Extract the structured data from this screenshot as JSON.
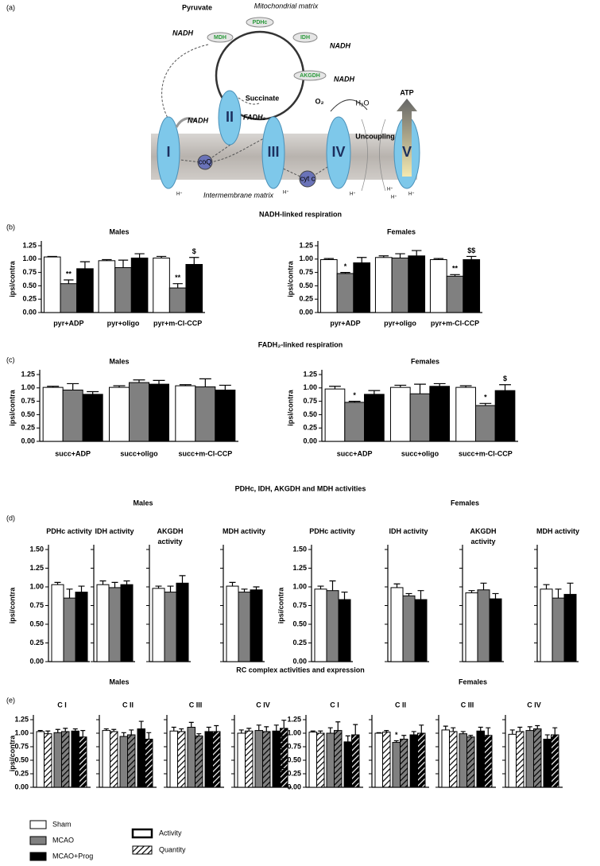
{
  "diagram": {
    "panel_label": "(a)",
    "pyruvate": "Pyruvate",
    "matrix": "Mitochondrial matrix",
    "pdhc": "PDHc",
    "mdh": "MDH",
    "idh": "IDH",
    "akgdh": "AKGDH",
    "succinate": "Succinate",
    "nadh_mdh": "NADH",
    "nadh_idh": "NADH",
    "nadh_akgdh": "NADH",
    "nadh_complex1": "NADH",
    "fadh2": "FADH₂",
    "complexes": [
      "I",
      "II",
      "III",
      "IV",
      "V"
    ],
    "coq": "coQ",
    "cytc": "cyt c",
    "o2": "O₂",
    "h2o": "H₂O",
    "atp": "ATP",
    "uncoupling": "Uncoupling",
    "intermembrane": "Intermembrane matrix",
    "protons": [
      "H⁺",
      "H⁺",
      "H⁺",
      "H⁺",
      "H⁺",
      "H⁺"
    ]
  },
  "headings": [
    "NADH-linked respiration",
    "FADH₂-linked respiration",
    "PDHc, IDH, AKGDH and MDH activities",
    "RC complex activities and expression"
  ],
  "panel_labels": [
    "(b)",
    "(c)",
    "(d)",
    "(e)"
  ],
  "chart_data": [
    {
      "type": "grouped-bar",
      "title": "Males",
      "ylabel": "ipsi/contra",
      "categories": [
        "pyr+ADP",
        "pyr+oligo",
        "pyr+m-Cl-CCP"
      ],
      "series": [
        {
          "name": "Sham",
          "color": "#ffffff",
          "values": [
            1.04,
            0.97,
            1.02
          ],
          "errors": [
            0.01,
            0.02,
            0.03
          ]
        },
        {
          "name": "MCAO",
          "color": "#808080",
          "values": [
            0.54,
            0.84,
            0.46
          ],
          "errors": [
            0.07,
            0.14,
            0.08
          ],
          "significance": [
            "**",
            null,
            "**"
          ]
        },
        {
          "name": "MCAO+Prog",
          "color": "#000000",
          "values": [
            0.82,
            1.02,
            0.9
          ],
          "errors": [
            0.13,
            0.08,
            0.13
          ],
          "significance": [
            null,
            null,
            "$"
          ]
        }
      ],
      "ylim": [
        0,
        1.25
      ],
      "yticks": [
        {
          "value": 0,
          "label": "0.00"
        },
        {
          "value": 0.25,
          "label": "0.25"
        },
        {
          "value": 0.5,
          "label": "0.50"
        },
        {
          "value": 0.75,
          "label": "0.75"
        },
        {
          "value": 1,
          "label": "1.00"
        },
        {
          "value": 1.25,
          "label": "1.25"
        }
      ]
    },
    {
      "type": "grouped-bar",
      "title": "Females",
      "ylabel": "ipsi/contra",
      "categories": [
        "pyr+ADP",
        "pyr+oligo",
        "pyr+m-Cl-CCP"
      ],
      "series": [
        {
          "name": "Sham",
          "color": "#ffffff",
          "values": [
            0.99,
            1.03,
            0.99
          ],
          "errors": [
            0.02,
            0.03,
            0.02
          ]
        },
        {
          "name": "MCAO",
          "color": "#808080",
          "values": [
            0.73,
            1.02,
            0.68
          ],
          "errors": [
            0.02,
            0.08,
            0.03
          ],
          "significance": [
            "*",
            null,
            "**"
          ]
        },
        {
          "name": "MCAO+Prog",
          "color": "#000000",
          "values": [
            0.93,
            1.06,
            0.99
          ],
          "errors": [
            0.1,
            0.1,
            0.06
          ],
          "significance": [
            null,
            null,
            "$$"
          ]
        }
      ],
      "ylim": [
        0,
        1.25
      ],
      "yticks": [
        {
          "value": 0,
          "label": "0.00"
        },
        {
          "value": 0.25,
          "label": "0.25"
        },
        {
          "value": 0.5,
          "label": "0.50"
        },
        {
          "value": 0.75,
          "label": "0.75"
        },
        {
          "value": 1,
          "label": "1.00"
        },
        {
          "value": 1.25,
          "label": "1.25"
        }
      ]
    },
    {
      "type": "grouped-bar",
      "title": "Males",
      "ylabel": "ipsi/contra",
      "categories": [
        "succ+ADP",
        "succ+oligo",
        "succ+m-Cl-CCP"
      ],
      "series": [
        {
          "name": "Sham",
          "color": "#ffffff",
          "values": [
            1.01,
            1.01,
            1.04
          ],
          "errors": [
            0.02,
            0.03,
            0.02
          ]
        },
        {
          "name": "MCAO",
          "color": "#808080",
          "values": [
            0.96,
            1.1,
            1.02
          ],
          "errors": [
            0.12,
            0.05,
            0.15
          ]
        },
        {
          "name": "MCAO+Prog",
          "color": "#000000",
          "values": [
            0.88,
            1.07,
            0.96
          ],
          "errors": [
            0.05,
            0.07,
            0.09
          ]
        }
      ],
      "ylim": [
        0,
        1.25
      ],
      "yticks": [
        {
          "value": 0,
          "label": "0.00"
        },
        {
          "value": 0.25,
          "label": "0.25"
        },
        {
          "value": 0.5,
          "label": "0.50"
        },
        {
          "value": 0.75,
          "label": "0.75"
        },
        {
          "value": 1,
          "label": "1.00"
        },
        {
          "value": 1.25,
          "label": "1.25"
        }
      ]
    },
    {
      "type": "grouped-bar",
      "title": "Females",
      "ylabel": "ipsi/contra",
      "categories": [
        "succ+ADP",
        "succ+oligo",
        "succ+m-Cl-CCP"
      ],
      "series": [
        {
          "name": "Sham",
          "color": "#ffffff",
          "values": [
            0.98,
            1.01,
            1.01
          ],
          "errors": [
            0.05,
            0.04,
            0.03
          ]
        },
        {
          "name": "MCAO",
          "color": "#808080",
          "values": [
            0.73,
            0.89,
            0.67
          ],
          "errors": [
            0.02,
            0.18,
            0.04
          ],
          "significance": [
            "*",
            null,
            "*"
          ]
        },
        {
          "name": "MCAO+Prog",
          "color": "#000000",
          "values": [
            0.88,
            1.03,
            0.95
          ],
          "errors": [
            0.07,
            0.05,
            0.11
          ],
          "significance": [
            null,
            null,
            "$"
          ]
        }
      ],
      "ylim": [
        0,
        1.25
      ],
      "yticks": [
        {
          "value": 0,
          "label": "0.00"
        },
        {
          "value": 0.25,
          "label": "0.25"
        },
        {
          "value": 0.5,
          "label": "0.50"
        },
        {
          "value": 0.75,
          "label": "0.75"
        },
        {
          "value": 1,
          "label": "1.00"
        },
        {
          "value": 1.25,
          "label": "1.25"
        }
      ]
    },
    {
      "type": "small-multiple-bar",
      "title": "Males",
      "ylabel": "ipsi/contra",
      "categories": [
        "PDHc activity",
        "IDH activity",
        "AKGDH activity",
        "MDH activity"
      ],
      "series": [
        {
          "name": "Sham",
          "color": "#ffffff",
          "values": [
            1.03,
            1.03,
            0.98,
            1.01
          ],
          "errors": [
            0.03,
            0.05,
            0.03,
            0.05
          ]
        },
        {
          "name": "MCAO",
          "color": "#808080",
          "values": [
            0.85,
            0.99,
            0.93,
            0.93
          ],
          "errors": [
            0.12,
            0.07,
            0.08,
            0.04
          ]
        },
        {
          "name": "MCAO+Prog",
          "color": "#000000",
          "values": [
            0.93,
            1.03,
            1.05,
            0.96
          ],
          "errors": [
            0.08,
            0.05,
            0.1,
            0.04
          ]
        }
      ],
      "ylim": [
        0,
        1.5
      ],
      "yticks": [
        {
          "value": 0,
          "label": "0.00"
        },
        {
          "value": 0.25,
          "label": "0.25"
        },
        {
          "value": 0.5,
          "label": "0.50"
        },
        {
          "value": 0.75,
          "label": "0.75"
        },
        {
          "value": 1,
          "label": "1.00"
        },
        {
          "value": 1.25,
          "label": "1.25"
        },
        {
          "value": 1.5,
          "label": "1.50"
        }
      ]
    },
    {
      "type": "small-multiple-bar",
      "title": "Females",
      "ylabel": "ipsi/contra",
      "categories": [
        "PDHc activity",
        "IDH activity",
        "AKGDH activity",
        "MDH activity"
      ],
      "series": [
        {
          "name": "Sham",
          "color": "#ffffff",
          "values": [
            0.97,
            0.99,
            0.92,
            0.97
          ],
          "errors": [
            0.04,
            0.05,
            0.03,
            0.06
          ]
        },
        {
          "name": "MCAO",
          "color": "#808080",
          "values": [
            0.95,
            0.88,
            0.96,
            0.85
          ],
          "errors": [
            0.13,
            0.03,
            0.09,
            0.12
          ]
        },
        {
          "name": "MCAO+Prog",
          "color": "#000000",
          "values": [
            0.83,
            0.83,
            0.84,
            0.9
          ],
          "errors": [
            0.1,
            0.12,
            0.07,
            0.15
          ]
        }
      ],
      "ylim": [
        0,
        1.5
      ],
      "yticks": [
        {
          "value": 0,
          "label": "0.00"
        },
        {
          "value": 0.25,
          "label": "0.25"
        },
        {
          "value": 0.5,
          "label": "0.50"
        },
        {
          "value": 0.75,
          "label": "0.75"
        },
        {
          "value": 1,
          "label": "1.00"
        },
        {
          "value": 1.25,
          "label": "1.25"
        },
        {
          "value": 1.5,
          "label": "1.50"
        }
      ]
    },
    {
      "type": "paired-bar",
      "title": "Males",
      "ylabel": "ipsi/contra",
      "categories": [
        "C I",
        "C II",
        "C III",
        "C IV"
      ],
      "series": [
        {
          "name": "Sham",
          "color": "#ffffff",
          "values": [
            1.03,
            1.05,
            1.04,
            1.0
          ],
          "errors": [
            0.02,
            0.03,
            0.07,
            0.06
          ],
          "quantity_values": [
            0.99,
            1.03,
            1.03,
            1.04
          ],
          "quantity_errors": [
            0.05,
            0.04,
            0.05,
            0.05
          ]
        },
        {
          "name": "MCAO",
          "color": "#808080",
          "values": [
            1.01,
            0.94,
            1.11,
            1.05
          ],
          "errors": [
            0.06,
            0.07,
            0.09,
            0.1
          ],
          "quantity_values": [
            1.03,
            0.97,
            0.95,
            1.03
          ],
          "quantity_errors": [
            0.06,
            0.09,
            0.04,
            0.09
          ]
        },
        {
          "name": "MCAO+Prog",
          "color": "#000000",
          "values": [
            1.04,
            1.08,
            1.03,
            1.04
          ],
          "errors": [
            0.04,
            0.14,
            0.08,
            0.11
          ],
          "quantity_values": [
            0.93,
            0.89,
            1.03,
            1.09
          ],
          "quantity_errors": [
            0.12,
            0.12,
            0.11,
            0.15
          ]
        }
      ],
      "ylim": [
        0,
        1.25
      ],
      "yticks": [
        {
          "value": 0,
          "label": "0.00"
        },
        {
          "value": 0.25,
          "label": "0.25"
        },
        {
          "value": 0.5,
          "label": "0.50"
        },
        {
          "value": 0.75,
          "label": "0.75"
        },
        {
          "value": 1,
          "label": "1.00"
        },
        {
          "value": 1.25,
          "label": "1.25"
        }
      ]
    },
    {
      "type": "paired-bar",
      "title": "Females",
      "ylabel": "ipsi/contra",
      "categories": [
        "C I",
        "C II",
        "C III",
        "C IV"
      ],
      "measures": [
        "Activity",
        "Quantity"
      ],
      "series": [
        {
          "name": "Sham",
          "color": "#ffffff",
          "values": [
            1.02,
            1.0,
            1.06,
            0.98
          ],
          "errors": [
            0.02,
            0.01,
            0.07,
            0.08
          ],
          "quantity_values": [
            1.0,
            1.02,
            1.03,
            1.03
          ],
          "quantity_errors": [
            0.04,
            0.03,
            0.07,
            0.08
          ]
        },
        {
          "name": "MCAO",
          "color": "#808080",
          "values": [
            1.0,
            0.83,
            0.99,
            1.05
          ],
          "errors": [
            0.1,
            0.03,
            0.04,
            0.07
          ],
          "quantity_values": [
            1.05,
            0.89,
            0.93,
            1.08
          ],
          "quantity_errors": [
            0.16,
            0.07,
            0.03,
            0.06
          ],
          "significance": [
            null,
            "*",
            null,
            null
          ]
        },
        {
          "name": "MCAO+Prog",
          "color": "#000000",
          "values": [
            0.84,
            0.97,
            1.04,
            0.89
          ],
          "errors": [
            0.11,
            0.06,
            0.07,
            0.08
          ],
          "quantity_values": [
            0.97,
            1.0,
            0.96,
            0.97
          ],
          "quantity_errors": [
            0.19,
            0.15,
            0.14,
            0.13
          ]
        }
      ],
      "ylim": [
        0,
        1.25
      ],
      "yticks": [
        {
          "value": 0,
          "label": "0.00"
        },
        {
          "value": 0.25,
          "label": "0.25"
        },
        {
          "value": 0.5,
          "label": "0.50"
        },
        {
          "value": 0.75,
          "label": "0.75"
        },
        {
          "value": 1,
          "label": "1.00"
        },
        {
          "value": 1.25,
          "label": "1.25"
        }
      ]
    }
  ]
}
